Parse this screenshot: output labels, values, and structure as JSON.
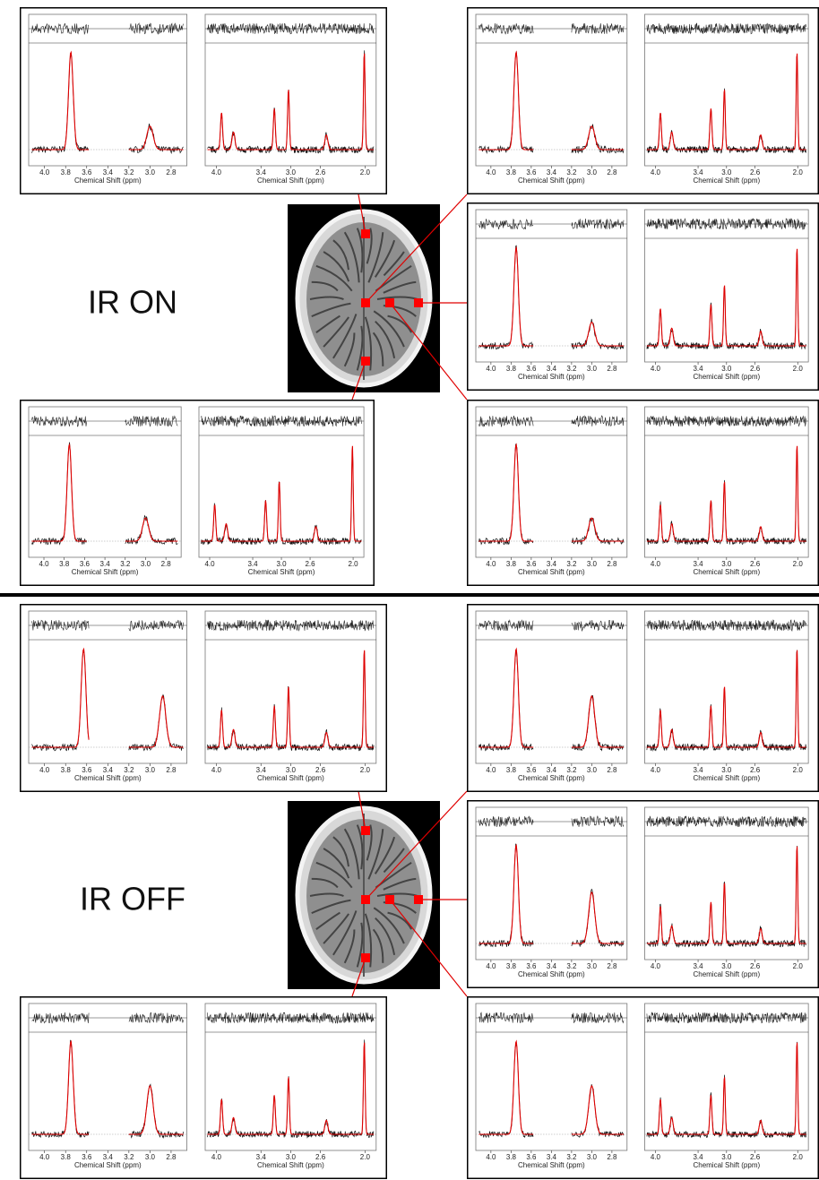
{
  "halves": [
    {
      "label": "IR ON",
      "panels": [
        {
          "plots": [
            {
              "xlim": [
                4.15,
                2.65
              ],
              "xticks": [
                "4.0",
                "3.8",
                "3.6",
                "3.4",
                "3.2",
                "3.0",
                "2.8"
              ],
              "xlabel": "Chemical Shift (ppm)"
            },
            {
              "xlim": [
                4.15,
                1.85
              ],
              "xticks": [
                "4.0",
                "3.4",
                "3.0",
                "2.6",
                "2.0"
              ],
              "xlabel": "Chemical Shift (ppm)"
            }
          ]
        },
        {
          "plots": [
            {
              "xlim": [
                4.15,
                2.65
              ],
              "xticks": [
                "4.0",
                "3.8",
                "3.6",
                "3.4",
                "3.2",
                "3.0",
                "2.8"
              ],
              "xlabel": "Chemical Shift (ppm)"
            },
            {
              "xlim": [
                4.15,
                1.85
              ],
              "xticks": [
                "4.0",
                "3.4",
                "3.0",
                "2.6",
                "2.0"
              ],
              "xlabel": "Chemical Shift (ppm)"
            }
          ]
        },
        {
          "plots": [
            {
              "xlim": [
                4.15,
                2.65
              ],
              "xticks": [
                "4.0",
                "3.8",
                "3.6",
                "3.4",
                "3.2",
                "3.0",
                "2.8"
              ],
              "xlabel": "Chemical Shift (ppm)"
            },
            {
              "xlim": [
                4.15,
                1.85
              ],
              "xticks": [
                "4.0",
                "3.4",
                "3.0",
                "2.6",
                "2.0"
              ],
              "xlabel": "Chemical Shift (ppm)"
            }
          ]
        },
        {
          "plots": [
            {
              "xlim": [
                4.15,
                2.65
              ],
              "xticks": [
                "4.0",
                "3.8",
                "3.6",
                "3.4",
                "3.2",
                "3.0",
                "2.8"
              ],
              "xlabel": "Chemical Shift (ppm)"
            },
            {
              "xlim": [
                4.15,
                1.85
              ],
              "xticks": [
                "4.0",
                "3.4",
                "3.0",
                "2.6",
                "2.0"
              ],
              "xlabel": "Chemical Shift (ppm)"
            }
          ]
        },
        {
          "plots": [
            {
              "xlim": [
                4.15,
                2.65
              ],
              "xticks": [
                "4.0",
                "3.8",
                "3.6",
                "3.4",
                "3.2",
                "3.0",
                "2.8"
              ],
              "xlabel": "Chemical Shift (ppm)"
            },
            {
              "xlim": [
                4.15,
                1.85
              ],
              "xticks": [
                "4.0",
                "3.4",
                "3.0",
                "2.6",
                "2.0"
              ],
              "xlabel": "Chemical Shift (ppm)"
            }
          ]
        }
      ]
    },
    {
      "label": "IR OFF",
      "panels": [
        {
          "plots": [
            {
              "xlim": [
                4.15,
                2.65
              ],
              "xticks": [
                "4.0",
                "3.8",
                "3.6",
                "3.4",
                "3.2",
                "3.0",
                "2.8"
              ],
              "xlabel": "Chemical Shift (ppm)"
            },
            {
              "xlim": [
                4.15,
                1.85
              ],
              "xticks": [
                "4.0",
                "3.4",
                "3.0",
                "2.6",
                "2.0"
              ],
              "xlabel": "Chemical Shift (ppm)"
            }
          ]
        },
        {
          "plots": [
            {
              "xlim": [
                4.15,
                2.65
              ],
              "xticks": [
                "4.0",
                "3.8",
                "3.6",
                "3.4",
                "3.2",
                "3.0",
                "2.8"
              ],
              "xlabel": "Chemical Shift (ppm)"
            },
            {
              "xlim": [
                4.15,
                1.85
              ],
              "xticks": [
                "4.0",
                "3.4",
                "3.0",
                "2.6",
                "2.0"
              ],
              "xlabel": "Chemical Shift (ppm)"
            }
          ]
        },
        {
          "plots": [
            {
              "xlim": [
                4.15,
                2.65
              ],
              "xticks": [
                "4.0",
                "3.8",
                "3.6",
                "3.4",
                "3.2",
                "3.0",
                "2.8"
              ],
              "xlabel": "Chemical Shift (ppm)"
            },
            {
              "xlim": [
                4.15,
                1.85
              ],
              "xticks": [
                "4.0",
                "3.4",
                "3.0",
                "2.6",
                "2.0"
              ],
              "xlabel": "Chemical Shift (ppm)"
            }
          ]
        },
        {
          "plots": [
            {
              "xlim": [
                4.15,
                2.65
              ],
              "xticks": [
                "4.0",
                "3.8",
                "3.6",
                "3.4",
                "3.2",
                "3.0",
                "2.8"
              ],
              "xlabel": "Chemical Shift (ppm)"
            },
            {
              "xlim": [
                4.15,
                1.85
              ],
              "xticks": [
                "4.0",
                "3.4",
                "3.0",
                "2.6",
                "2.0"
              ],
              "xlabel": "Chemical Shift (ppm)"
            }
          ]
        },
        {
          "plots": [
            {
              "xlim": [
                4.15,
                2.65
              ],
              "xticks": [
                "4.0",
                "3.8",
                "3.6",
                "3.4",
                "3.2",
                "3.0",
                "2.8"
              ],
              "xlabel": "Chemical Shift (ppm)"
            },
            {
              "xlim": [
                4.15,
                1.85
              ],
              "xticks": [
                "4.0",
                "3.4",
                "3.0",
                "2.6",
                "2.0"
              ],
              "xlabel": "Chemical Shift (ppm)"
            }
          ]
        }
      ]
    }
  ]
}
